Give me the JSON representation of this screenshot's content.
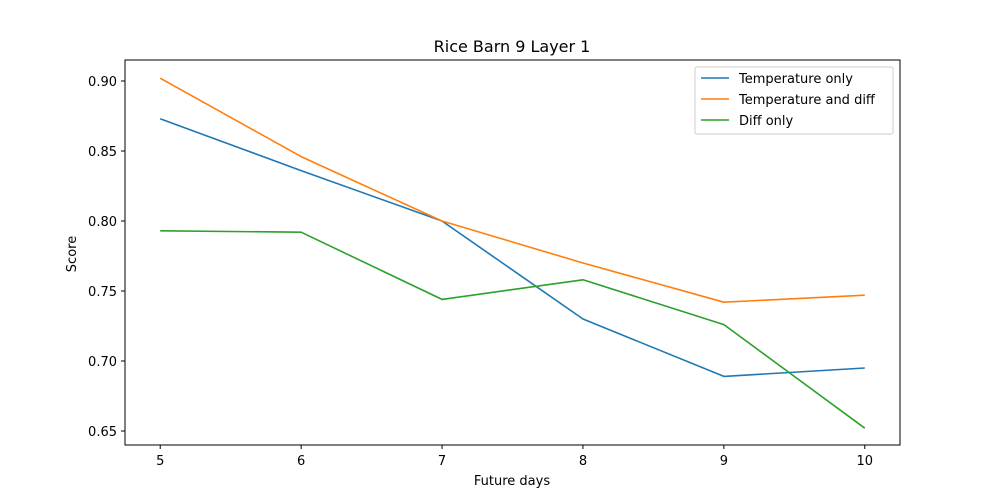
{
  "chart_data": {
    "type": "line",
    "title": "Rice Barn 9 Layer 1",
    "xlabel": "Future days",
    "ylabel": "Score",
    "x": [
      5,
      6,
      7,
      8,
      9,
      10
    ],
    "xlim": [
      4.75,
      10.25
    ],
    "ylim": [
      0.64,
      0.915
    ],
    "x_ticks": [
      "5",
      "6",
      "7",
      "8",
      "9",
      "10"
    ],
    "y_ticks": [
      "0.65",
      "0.70",
      "0.75",
      "0.80",
      "0.85",
      "0.90"
    ],
    "y_tick_values": [
      0.65,
      0.7,
      0.75,
      0.8,
      0.85,
      0.9
    ],
    "grid": false,
    "legend_position": "top-right",
    "series": [
      {
        "name": "Temperature only",
        "color": "#1f77b4",
        "values": [
          0.873,
          0.836,
          0.8,
          0.73,
          0.689,
          0.695
        ]
      },
      {
        "name": "Temperature and diff",
        "color": "#ff7f0e",
        "values": [
          0.902,
          0.846,
          0.8,
          0.77,
          0.742,
          0.747
        ]
      },
      {
        "name": "Diff only",
        "color": "#2ca02c",
        "values": [
          0.793,
          0.792,
          0.744,
          0.758,
          0.726,
          0.652
        ]
      }
    ]
  }
}
